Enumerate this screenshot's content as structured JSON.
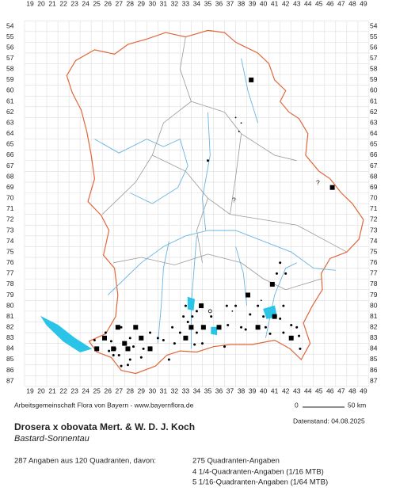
{
  "grid": {
    "columns": [
      19,
      20,
      21,
      22,
      23,
      24,
      25,
      26,
      27,
      28,
      29,
      30,
      31,
      32,
      33,
      34,
      35,
      36,
      37,
      38,
      39,
      40,
      41,
      42,
      43,
      44,
      45,
      46,
      47,
      48,
      49
    ],
    "rows": [
      54,
      55,
      56,
      57,
      58,
      59,
      60,
      61,
      62,
      63,
      64,
      65,
      66,
      67,
      68,
      69,
      70,
      71,
      72,
      73,
      74,
      75,
      76,
      77,
      78,
      79,
      80,
      81,
      82,
      83,
      84,
      85,
      86,
      87
    ]
  },
  "uncertain_marks": [
    "?",
    "?"
  ],
  "footer": {
    "credit": "Arbeitsgemeinschaft Flora von Bayern - www.bayernflora.de",
    "scale_start": "0",
    "scale_end": "50 km",
    "date": "Datenstand: 04.08.2025",
    "title": "Drosera x obovata Mert. & W. D. J. Koch",
    "subtitle": "Bastard-Sonnentau",
    "summary": "287 Angaben aus 120 Quadranten, davon:",
    "details": [
      "275 Quadranten-Angaben",
      "4 1/4-Quadranten-Angaben (1/16 MTB)",
      "5 1/16-Quadranten-Angaben (1/64 MTB)"
    ]
  }
}
